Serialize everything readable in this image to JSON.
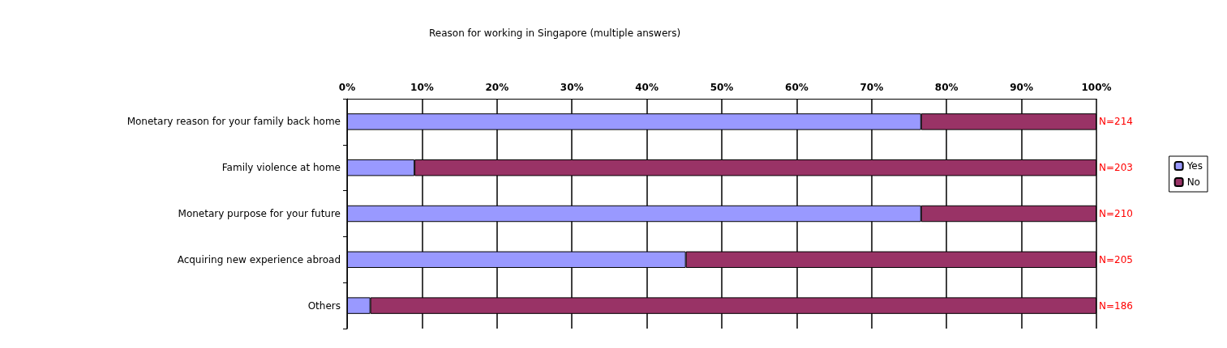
{
  "chart_data": {
    "type": "bar",
    "orientation": "horizontal",
    "stacked": true,
    "title": "Reason for working in Singapore (multiple answers)",
    "categories": [
      "Monetary reason for your family back home",
      "Family violence at home",
      "Monetary purpose for your future",
      "Acquiring new experience abroad",
      "Others"
    ],
    "series": [
      {
        "name": "Yes",
        "color": "#9999ff",
        "values": [
          76.6,
          9.0,
          76.6,
          45.2,
          3.1
        ]
      },
      {
        "name": "No",
        "color": "#993366",
        "values": [
          23.4,
          91.0,
          23.4,
          54.8,
          96.9
        ]
      }
    ],
    "xlim": [
      0,
      100
    ],
    "xticks": [
      {
        "value": 0,
        "label": "0%"
      },
      {
        "value": 10,
        "label": "10%"
      },
      {
        "value": 20,
        "label": "20%"
      },
      {
        "value": 30,
        "label": "30%"
      },
      {
        "value": 40,
        "label": "40%"
      },
      {
        "value": 50,
        "label": "50%"
      },
      {
        "value": 60,
        "label": "60%"
      },
      {
        "value": 70,
        "label": "70%"
      },
      {
        "value": 80,
        "label": "80%"
      },
      {
        "value": 90,
        "label": "90%"
      },
      {
        "value": 100,
        "label": "100%"
      }
    ],
    "grid": "x",
    "legend": "right",
    "annotations": [
      "N=214",
      "N=203",
      "N=210",
      "N=205",
      "N=186"
    ]
  }
}
